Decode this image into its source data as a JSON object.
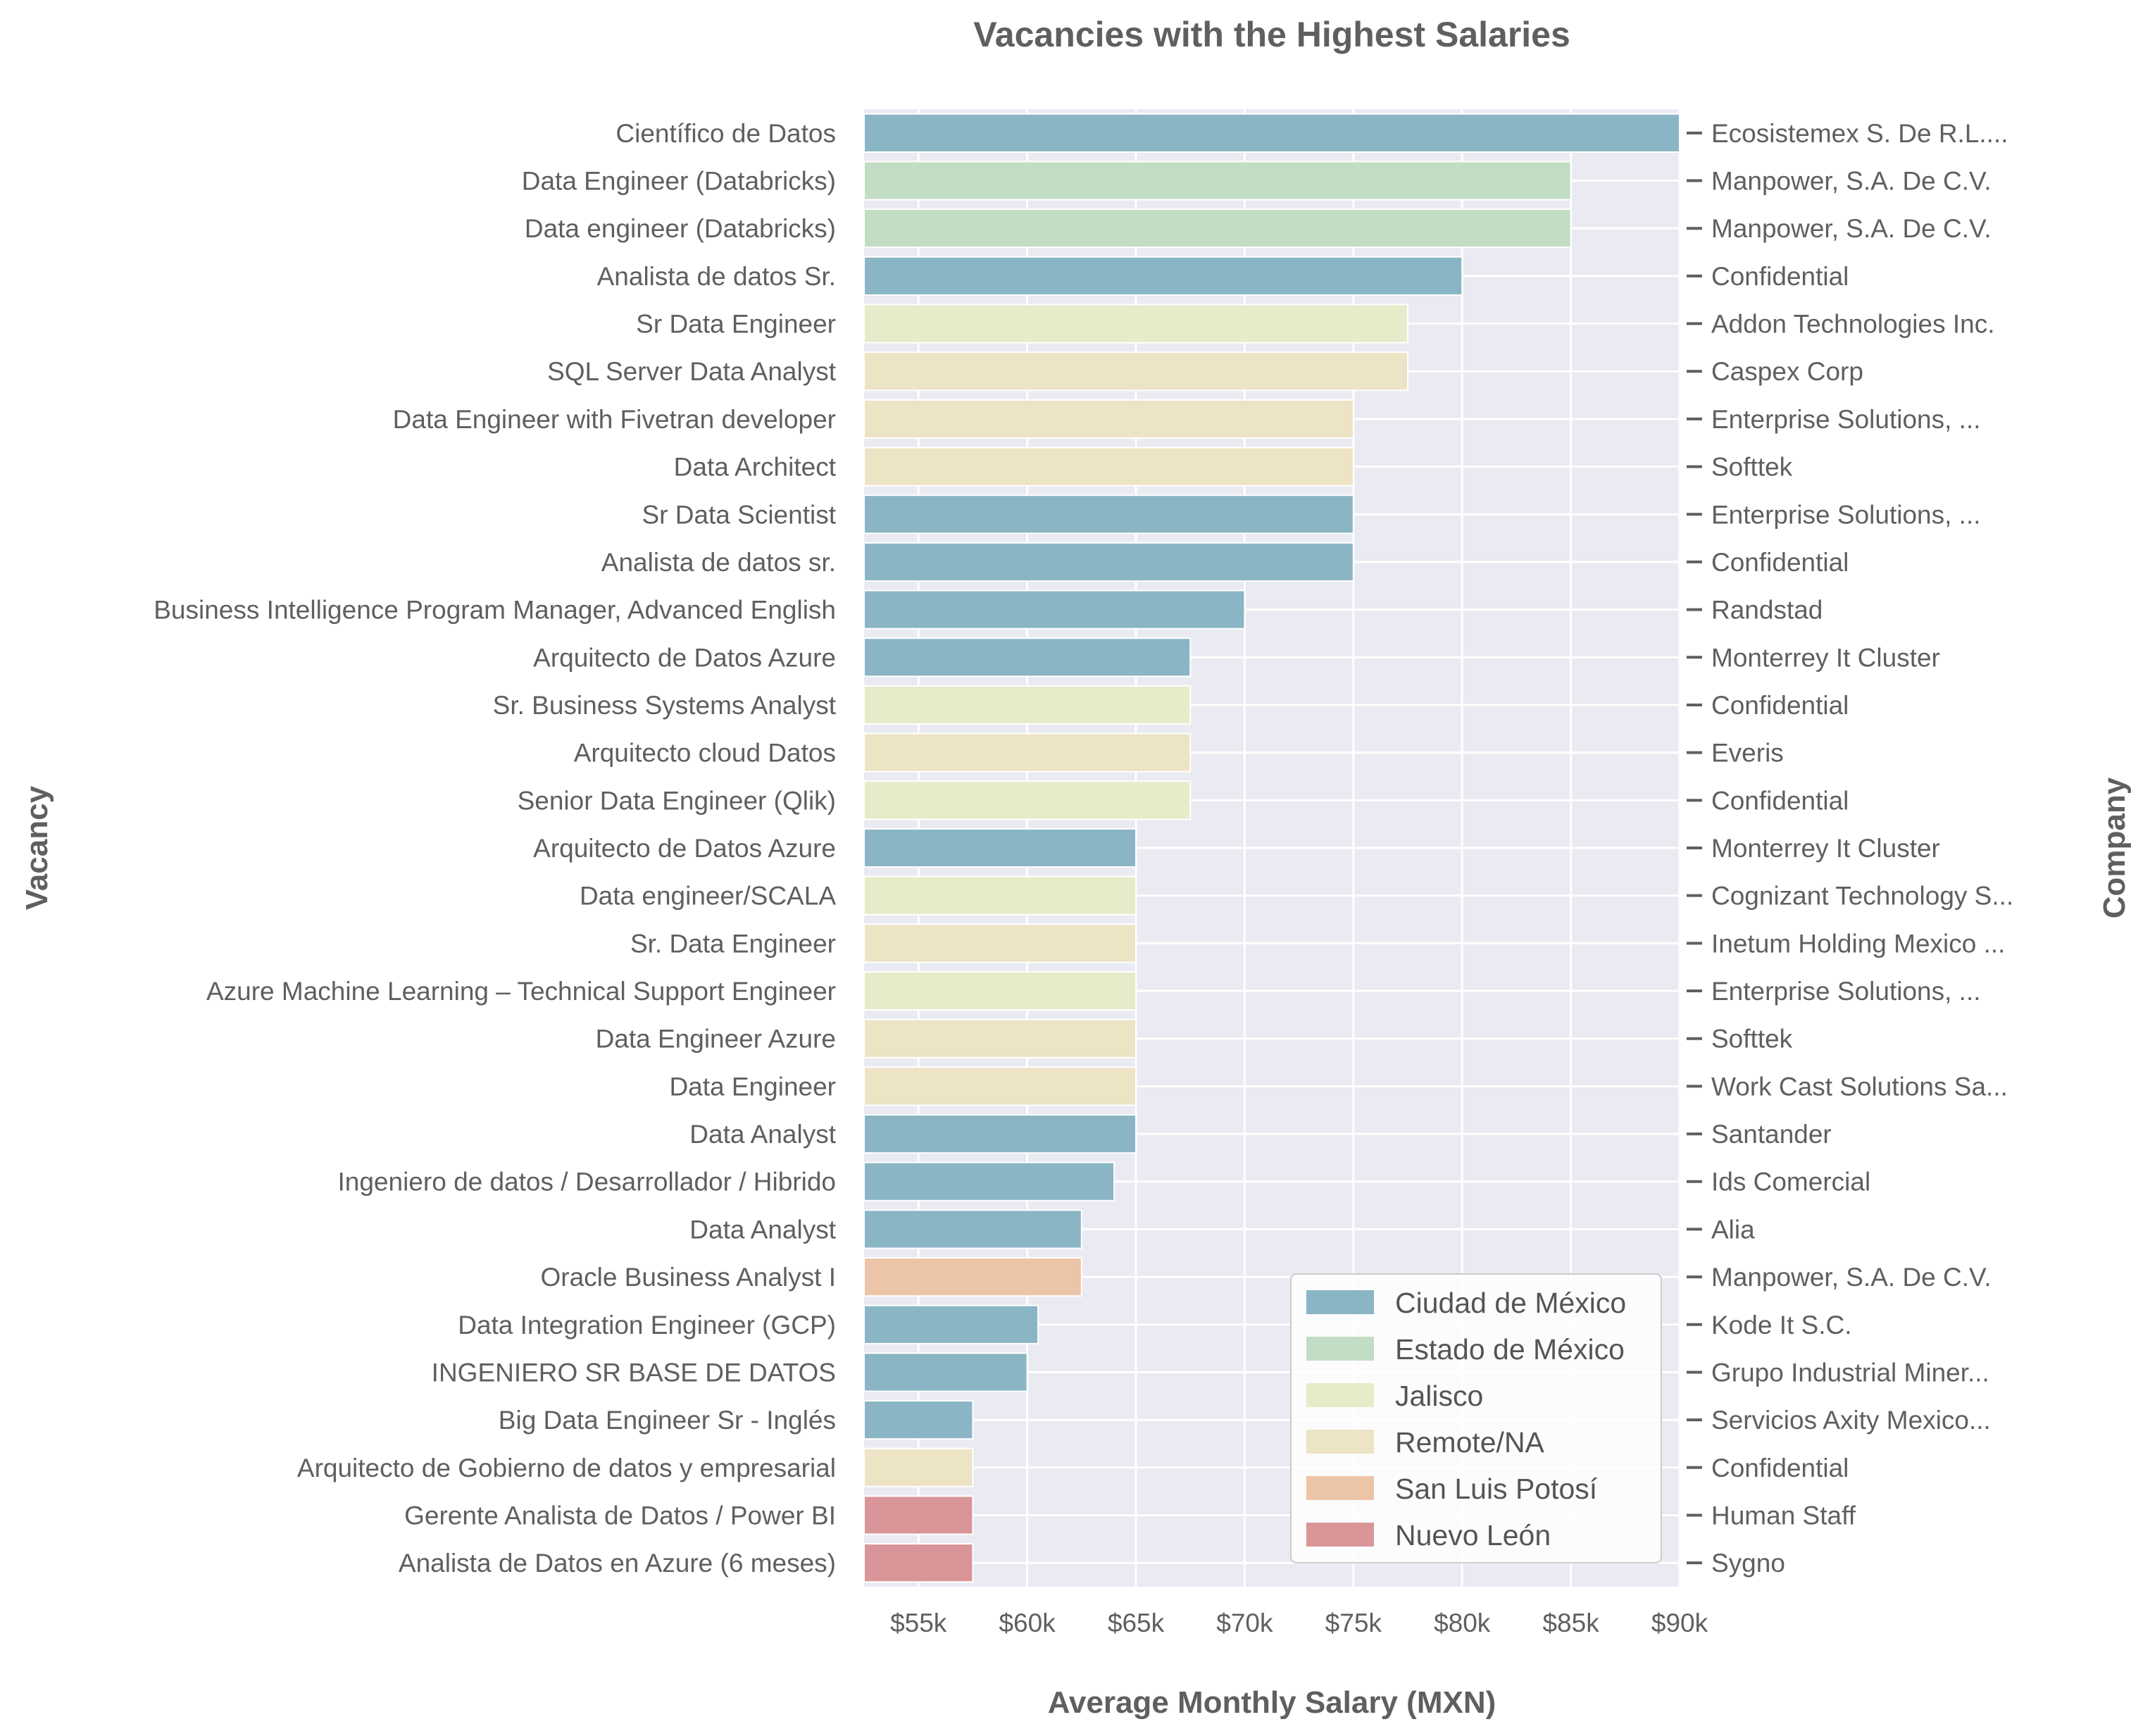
{
  "chart_data": {
    "type": "bar",
    "orientation": "horizontal",
    "title": "Vacancies with the Highest Salaries",
    "xlabel": "Average Monthly Salary (MXN)",
    "ylabel": "Vacancy",
    "ylabel_right": "Company",
    "xlim": [
      52500,
      90000
    ],
    "xticks": [
      55000,
      60000,
      65000,
      70000,
      75000,
      80000,
      85000,
      90000
    ],
    "xtick_labels": [
      "$55k",
      "$60k",
      "$65k",
      "$70k",
      "$75k",
      "$80k",
      "$85k",
      "$90k"
    ],
    "grid": true,
    "legend_position": "bottom-right",
    "legend": [
      {
        "name": "Ciudad de México",
        "color": "#8ab5c4"
      },
      {
        "name": "Estado de México",
        "color": "#c3dcc4"
      },
      {
        "name": "Jalisco",
        "color": "#e7ebc9"
      },
      {
        "name": "Remote/NA",
        "color": "#ede3c5"
      },
      {
        "name": "San Luis Potosí",
        "color": "#ecc4a8"
      },
      {
        "name": "Nuevo León",
        "color": "#d99598"
      }
    ],
    "bars": [
      {
        "vacancy": "Científico de Datos",
        "company": "Ecosistemex S. De R.L....",
        "value": 90000,
        "location": "Ciudad de México"
      },
      {
        "vacancy": "Data Engineer (Databricks)",
        "company": "Manpower, S.A. De C.V.",
        "value": 85000,
        "location": "Estado de México"
      },
      {
        "vacancy": "Data engineer (Databricks)",
        "company": "Manpower, S.A. De C.V.",
        "value": 85000,
        "location": "Estado de México"
      },
      {
        "vacancy": "Analista de datos Sr.",
        "company": "Confidential",
        "value": 80000,
        "location": "Ciudad de México"
      },
      {
        "vacancy": "Sr Data Engineer",
        "company": "Addon Technologies Inc.",
        "value": 77500,
        "location": "Jalisco"
      },
      {
        "vacancy": "SQL Server Data Analyst",
        "company": "Caspex Corp",
        "value": 77500,
        "location": "Remote/NA"
      },
      {
        "vacancy": "Data Engineer with Fivetran developer",
        "company": "Enterprise Solutions, ...",
        "value": 75000,
        "location": "Remote/NA"
      },
      {
        "vacancy": "Data Architect",
        "company": "Softtek",
        "value": 75000,
        "location": "Remote/NA"
      },
      {
        "vacancy": "Sr Data Scientist",
        "company": "Enterprise Solutions, ...",
        "value": 75000,
        "location": "Ciudad de México"
      },
      {
        "vacancy": "Analista de datos sr.",
        "company": "Confidential",
        "value": 75000,
        "location": "Ciudad de México"
      },
      {
        "vacancy": "Business Intelligence Program Manager, Advanced English",
        "company": "Randstad",
        "value": 70000,
        "location": "Ciudad de México"
      },
      {
        "vacancy": "Arquitecto de Datos Azure",
        "company": "Monterrey It Cluster",
        "value": 67500,
        "location": "Ciudad de México"
      },
      {
        "vacancy": "Sr. Business Systems Analyst",
        "company": "Confidential",
        "value": 67500,
        "location": "Jalisco"
      },
      {
        "vacancy": "Arquitecto cloud Datos",
        "company": "Everis",
        "value": 67500,
        "location": "Remote/NA"
      },
      {
        "vacancy": "Senior Data Engineer (Qlik)",
        "company": "Confidential",
        "value": 67500,
        "location": "Jalisco"
      },
      {
        "vacancy": "Arquitecto de Datos Azure",
        "company": "Monterrey It Cluster",
        "value": 65000,
        "location": "Ciudad de México"
      },
      {
        "vacancy": "Data engineer/SCALA",
        "company": "Cognizant Technology S...",
        "value": 65000,
        "location": "Jalisco"
      },
      {
        "vacancy": "Sr. Data Engineer",
        "company": "Inetum Holding Mexico ...",
        "value": 65000,
        "location": "Remote/NA"
      },
      {
        "vacancy": "Azure Machine Learning – Technical Support Engineer",
        "company": "Enterprise Solutions, ...",
        "value": 65000,
        "location": "Jalisco"
      },
      {
        "vacancy": "Data Engineer Azure",
        "company": "Softtek",
        "value": 65000,
        "location": "Remote/NA"
      },
      {
        "vacancy": "Data Engineer",
        "company": "Work Cast Solutions Sa...",
        "value": 65000,
        "location": "Remote/NA"
      },
      {
        "vacancy": "Data Analyst",
        "company": "Santander",
        "value": 65000,
        "location": "Ciudad de México"
      },
      {
        "vacancy": "Ingeniero de datos / Desarrollador / Hibrido",
        "company": "Ids Comercial",
        "value": 64000,
        "location": "Ciudad de México"
      },
      {
        "vacancy": "Data Analyst",
        "company": "Alia",
        "value": 62500,
        "location": "Ciudad de México"
      },
      {
        "vacancy": "Oracle Business Analyst I",
        "company": "Manpower, S.A. De C.V.",
        "value": 62500,
        "location": "San Luis Potosí"
      },
      {
        "vacancy": "Data Integration Engineer (GCP)",
        "company": "Kode It S.C.",
        "value": 60500,
        "location": "Ciudad de México"
      },
      {
        "vacancy": "INGENIERO SR BASE DE DATOS",
        "company": "Grupo Industrial Miner...",
        "value": 60000,
        "location": "Ciudad de México"
      },
      {
        "vacancy": "Big Data Engineer Sr - Inglés",
        "company": "Servicios Axity Mexico...",
        "value": 57500,
        "location": "Ciudad de México"
      },
      {
        "vacancy": "Arquitecto de Gobierno de datos y empresarial",
        "company": "Confidential",
        "value": 57500,
        "location": "Remote/NA"
      },
      {
        "vacancy": "Gerente Analista de Datos / Power BI",
        "company": "Human Staff",
        "value": 57500,
        "location": "Nuevo León"
      },
      {
        "vacancy": "Analista de Datos en Azure (6 meses)",
        "company": "Sygno",
        "value": 57500,
        "location": "Nuevo León"
      }
    ]
  }
}
